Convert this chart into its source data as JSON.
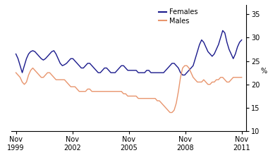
{
  "females_color": "#1a1a8c",
  "males_color": "#e8956d",
  "legend_labels": [
    "Females",
    "Males"
  ],
  "ylabel": "%",
  "ylim": [
    10,
    37
  ],
  "yticks": [
    10,
    15,
    20,
    25,
    30,
    35
  ],
  "xtick_positions": [
    0,
    36,
    72,
    108,
    144
  ],
  "xtick_labels": [
    "Nov\n1999",
    "Nov\n2002",
    "Nov\n2005",
    "Nov\n2008",
    "Nov\n2011"
  ],
  "xlim": [
    -3,
    147
  ],
  "background_color": "#ffffff",
  "females": [
    26.5,
    25.5,
    24.0,
    22.5,
    24.0,
    25.5,
    26.5,
    27.0,
    27.2,
    27.0,
    26.5,
    26.0,
    25.5,
    25.2,
    25.5,
    26.0,
    26.5,
    27.0,
    27.2,
    26.5,
    25.5,
    24.5,
    24.0,
    24.2,
    24.5,
    25.0,
    25.5,
    25.5,
    25.0,
    24.5,
    24.0,
    23.5,
    23.5,
    24.0,
    24.5,
    24.5,
    24.0,
    23.5,
    23.0,
    22.5,
    22.5,
    23.0,
    23.5,
    23.5,
    23.0,
    22.5,
    22.5,
    22.5,
    23.0,
    23.5,
    24.0,
    24.0,
    23.5,
    23.0,
    23.0,
    23.0,
    23.0,
    23.0,
    22.5,
    22.5,
    22.5,
    22.5,
    23.0,
    23.0,
    22.5,
    22.5,
    22.5,
    22.5,
    22.5,
    22.5,
    22.5,
    23.0,
    23.5,
    24.0,
    24.5,
    24.5,
    24.0,
    23.5,
    22.5,
    22.0,
    22.0,
    22.5,
    23.0,
    23.5,
    24.0,
    25.5,
    27.0,
    28.5,
    29.5,
    29.0,
    28.0,
    27.0,
    26.5,
    26.0,
    26.5,
    27.5,
    28.5,
    30.0,
    31.5,
    31.0,
    29.0,
    27.5,
    26.5,
    25.5,
    26.5,
    28.0,
    29.0,
    29.5
  ],
  "males": [
    22.5,
    22.0,
    21.5,
    20.5,
    20.0,
    20.5,
    22.0,
    23.0,
    23.5,
    23.0,
    22.5,
    22.0,
    21.5,
    21.5,
    22.0,
    22.5,
    22.5,
    22.0,
    21.5,
    21.0,
    21.0,
    21.0,
    21.0,
    21.0,
    20.5,
    20.0,
    19.5,
    19.5,
    19.5,
    19.0,
    18.5,
    18.5,
    18.5,
    18.5,
    19.0,
    19.0,
    18.5,
    18.5,
    18.5,
    18.5,
    18.5,
    18.5,
    18.5,
    18.5,
    18.5,
    18.5,
    18.5,
    18.5,
    18.5,
    18.5,
    18.5,
    18.0,
    18.0,
    17.5,
    17.5,
    17.5,
    17.5,
    17.5,
    17.0,
    17.0,
    17.0,
    17.0,
    17.0,
    17.0,
    17.0,
    17.0,
    17.0,
    16.5,
    16.5,
    16.0,
    15.5,
    15.0,
    14.5,
    14.0,
    14.0,
    14.5,
    16.0,
    18.5,
    21.5,
    23.5,
    24.0,
    24.0,
    23.5,
    22.5,
    21.5,
    21.0,
    20.5,
    20.5,
    20.5,
    21.0,
    20.5,
    20.0,
    20.0,
    20.5,
    20.5,
    21.0,
    21.0,
    21.5,
    21.5,
    21.0,
    20.5,
    20.5,
    21.0,
    21.5,
    21.5,
    21.5,
    21.5,
    21.5
  ]
}
